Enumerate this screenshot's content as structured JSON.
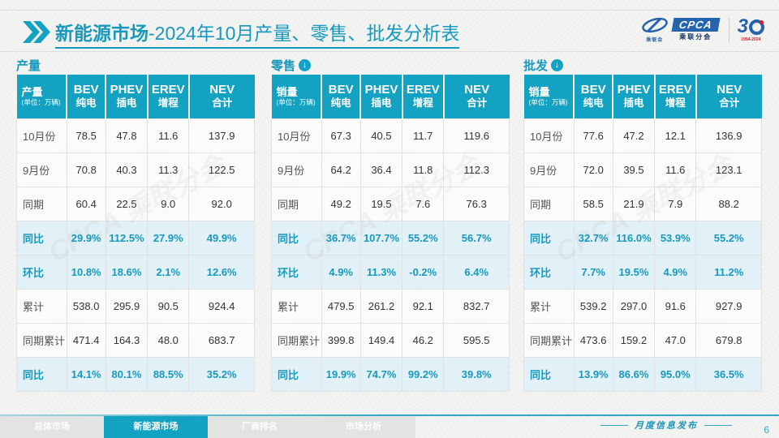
{
  "header": {
    "title_bold": "新能源市场",
    "title_rest": "-2024年10月产量、零售、批发分析表",
    "logo": {
      "swoosh_sub": "乘联会",
      "cpca": "CPCA",
      "cpca_sub": "乘联分会",
      "anniversary_3": "3",
      "anniversary_years": "1994-2024"
    }
  },
  "watermark_text": "CPCA 乘联分会",
  "colors": {
    "accent_teal": "#14a2c2",
    "title_teal": "#1799bd",
    "highlight_row_bg": "#e2f1f8",
    "logo_blue": "#2563ae",
    "anniversary_red": "#cc2229",
    "tab_gray": "#e3e3e1"
  },
  "tables": [
    {
      "section_title": "产量",
      "has_arrow": false,
      "corner_label": "产量",
      "corner_unit": "(单位：万辆)",
      "columns": [
        {
          "code": "BEV",
          "name": "纯电"
        },
        {
          "code": "PHEV",
          "name": "插电"
        },
        {
          "code": "EREV",
          "name": "增程"
        },
        {
          "code": "NEV",
          "name": "合计"
        }
      ],
      "rows": [
        {
          "label": "10月份",
          "values": [
            "78.5",
            "47.8",
            "11.6",
            "137.9"
          ],
          "highlight": false
        },
        {
          "label": "9月份",
          "values": [
            "70.8",
            "40.3",
            "11.3",
            "122.5"
          ],
          "highlight": false
        },
        {
          "label": "同期",
          "values": [
            "60.4",
            "22.5",
            "9.0",
            "92.0"
          ],
          "highlight": false
        },
        {
          "label": "同比",
          "values": [
            "29.9%",
            "112.5%",
            "27.9%",
            "49.9%"
          ],
          "highlight": true
        },
        {
          "label": "环比",
          "values": [
            "10.8%",
            "18.6%",
            "2.1%",
            "12.6%"
          ],
          "highlight": true
        },
        {
          "label": "累计",
          "values": [
            "538.0",
            "295.9",
            "90.5",
            "924.4"
          ],
          "highlight": false
        },
        {
          "label": "同期累计",
          "values": [
            "471.4",
            "164.3",
            "48.0",
            "683.7"
          ],
          "highlight": false
        },
        {
          "label": "同比",
          "values": [
            "14.1%",
            "80.1%",
            "88.5%",
            "35.2%"
          ],
          "highlight": true
        }
      ]
    },
    {
      "section_title": "零售",
      "has_arrow": true,
      "corner_label": "销量",
      "corner_unit": "(单位：万辆)",
      "columns": [
        {
          "code": "BEV",
          "name": "纯电"
        },
        {
          "code": "PHEV",
          "name": "插电"
        },
        {
          "code": "EREV",
          "name": "增程"
        },
        {
          "code": "NEV",
          "name": "合计"
        }
      ],
      "rows": [
        {
          "label": "10月份",
          "values": [
            "67.3",
            "40.5",
            "11.7",
            "119.6"
          ],
          "highlight": false
        },
        {
          "label": "9月份",
          "values": [
            "64.2",
            "36.4",
            "11.8",
            "112.3"
          ],
          "highlight": false
        },
        {
          "label": "同期",
          "values": [
            "49.2",
            "19.5",
            "7.6",
            "76.3"
          ],
          "highlight": false
        },
        {
          "label": "同比",
          "values": [
            "36.7%",
            "107.7%",
            "55.2%",
            "56.7%"
          ],
          "highlight": true
        },
        {
          "label": "环比",
          "values": [
            "4.9%",
            "11.3%",
            "-0.2%",
            "6.4%"
          ],
          "highlight": true
        },
        {
          "label": "累计",
          "values": [
            "479.5",
            "261.2",
            "92.1",
            "832.7"
          ],
          "highlight": false
        },
        {
          "label": "同期累计",
          "values": [
            "399.8",
            "149.4",
            "46.2",
            "595.5"
          ],
          "highlight": false
        },
        {
          "label": "同比",
          "values": [
            "19.9%",
            "74.7%",
            "99.2%",
            "39.8%"
          ],
          "highlight": true
        }
      ]
    },
    {
      "section_title": "批发",
      "has_arrow": true,
      "corner_label": "销量",
      "corner_unit": "(单位：万辆)",
      "columns": [
        {
          "code": "BEV",
          "name": "纯电"
        },
        {
          "code": "PHEV",
          "name": "插电"
        },
        {
          "code": "EREV",
          "name": "增程"
        },
        {
          "code": "NEV",
          "name": "合计"
        }
      ],
      "rows": [
        {
          "label": "10月份",
          "values": [
            "77.6",
            "47.2",
            "12.1",
            "136.9"
          ],
          "highlight": false
        },
        {
          "label": "9月份",
          "values": [
            "72.0",
            "39.5",
            "11.6",
            "123.1"
          ],
          "highlight": false
        },
        {
          "label": "同期",
          "values": [
            "58.5",
            "21.9",
            "7.9",
            "88.2"
          ],
          "highlight": false
        },
        {
          "label": "同比",
          "values": [
            "32.7%",
            "116.0%",
            "53.9%",
            "55.2%"
          ],
          "highlight": true
        },
        {
          "label": "环比",
          "values": [
            "7.7%",
            "19.5%",
            "4.9%",
            "11.2%"
          ],
          "highlight": true
        },
        {
          "label": "累计",
          "values": [
            "539.2",
            "297.0",
            "91.6",
            "927.9"
          ],
          "highlight": false
        },
        {
          "label": "同期累计",
          "values": [
            "473.6",
            "159.2",
            "47.0",
            "679.8"
          ],
          "highlight": false
        },
        {
          "label": "同比",
          "values": [
            "13.9%",
            "86.6%",
            "95.0%",
            "36.5%"
          ],
          "highlight": true
        }
      ]
    }
  ],
  "footer": {
    "tabs": [
      {
        "label": "总体市场",
        "active": false
      },
      {
        "label": "新能源市场",
        "active": true
      },
      {
        "label": "厂商排名",
        "active": false
      },
      {
        "label": "市场分析",
        "active": false
      }
    ],
    "publication": "月度信息发布",
    "page_number": "6"
  }
}
